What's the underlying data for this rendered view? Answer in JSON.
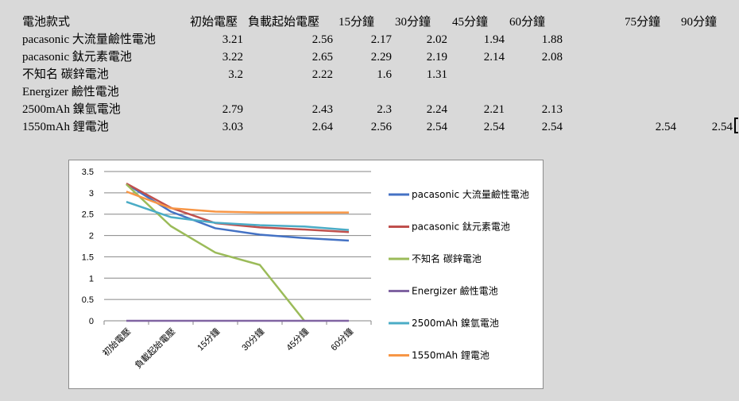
{
  "sheet": {
    "header_row": {
      "name_col": "電池款式",
      "cols": [
        "初始電壓",
        "負載起始電壓",
        "15分鐘",
        "30分鐘",
        "45分鐘",
        "60分鐘",
        "75分鐘",
        "90分鐘"
      ]
    },
    "rows": [
      {
        "name": "pacasonic  大流量鹼性電池",
        "values": [
          "3.21",
          "2.56",
          "2.17",
          "2.02",
          "1.94",
          "1.88",
          "",
          ""
        ]
      },
      {
        "name": "pacasonic  鈦元素電池",
        "values": [
          "3.22",
          "2.65",
          "2.29",
          "2.19",
          "2.14",
          "2.08",
          "",
          ""
        ]
      },
      {
        "name": "不知名    碳鋅電池",
        "values": [
          "3.2",
          "2.22",
          "1.6",
          "1.31",
          "",
          "",
          "",
          ""
        ]
      },
      {
        "name": "Energizer  鹼性電池",
        "values": [
          "",
          "",
          "",
          "",
          "",
          "",
          "",
          ""
        ]
      },
      {
        "name": "2500mAh    鎳氫電池",
        "values": [
          "2.79",
          "2.43",
          "2.3",
          "2.24",
          "2.21",
          "2.13",
          "",
          ""
        ]
      },
      {
        "name": "1550mAh    鋰電池",
        "values": [
          "3.03",
          "2.64",
          "2.56",
          "2.54",
          "2.54",
          "2.54",
          "2.54",
          "2.54"
        ]
      }
    ]
  },
  "chart_data": {
    "type": "line",
    "categories": [
      "初始電壓",
      "負載起始電壓",
      "15分鐘",
      "30分鐘",
      "45分鐘",
      "60分鐘"
    ],
    "ylim": [
      0,
      3.5
    ],
    "yticks": [
      "0",
      "0.5",
      "1",
      "1.5",
      "2",
      "2.5",
      "3",
      "3.5"
    ],
    "grid": "horizontal",
    "legend_position": "right",
    "series": [
      {
        "name": "pacasonic 大流量鹼性電池",
        "color": "#4472c4",
        "values": [
          3.21,
          2.56,
          2.17,
          2.02,
          1.94,
          1.88
        ]
      },
      {
        "name": "pacasonic 鈦元素電池",
        "color": "#c0504d",
        "values": [
          3.22,
          2.65,
          2.29,
          2.19,
          2.14,
          2.08
        ]
      },
      {
        "name": "不知名    碳鋅電池",
        "color": "#9bbb59",
        "values": [
          3.2,
          2.22,
          1.6,
          1.31,
          0,
          0
        ]
      },
      {
        "name": "Energizer  鹼性電池",
        "color": "#8064a2",
        "values": [
          0,
          0,
          0,
          0,
          0,
          0
        ]
      },
      {
        "name": "2500mAh    鎳氫電池",
        "color": "#4bacc6",
        "values": [
          2.79,
          2.43,
          2.3,
          2.24,
          2.21,
          2.13
        ]
      },
      {
        "name": "1550mAh    鋰電池",
        "color": "#f79646",
        "values": [
          3.03,
          2.64,
          2.56,
          2.54,
          2.54,
          2.54
        ]
      }
    ]
  }
}
